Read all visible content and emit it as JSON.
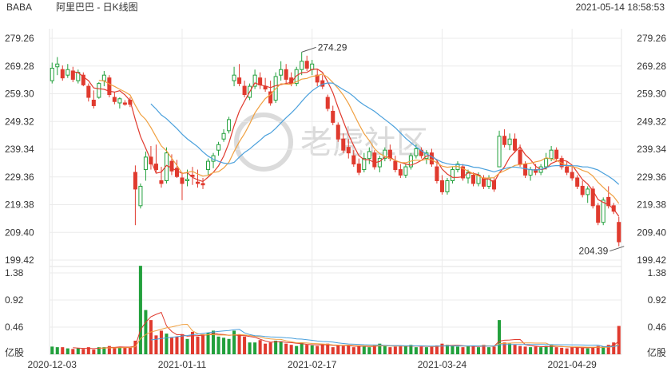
{
  "header": {
    "symbol": "BABA",
    "name": "阿里巴巴 - 日K线图",
    "timestamp": "2021-05-14 18:58:53"
  },
  "watermark": {
    "text": "老虎社区"
  },
  "colors": {
    "up": "#22a03c",
    "down": "#e03a2e",
    "ma5": "#e03a2e",
    "ma10": "#f0a040",
    "ma20": "#4aa0dc",
    "grid": "#ebebeb"
  },
  "chart_data": [
    {
      "type": "candlestick",
      "title": "",
      "price_axis": {
        "ticks": [
          "279.26",
          "269.28",
          "259.30",
          "249.32",
          "239.34",
          "229.36",
          "219.38",
          "209.40",
          "199.42"
        ],
        "range": [
          199.42,
          279.26
        ]
      },
      "date_axis": {
        "ticks": [
          "2020-12-03",
          "2021-01-11",
          "2021-02-17",
          "2021-03-24",
          "2021-04-29"
        ],
        "tick_index": [
          0,
          25,
          50,
          75,
          100
        ]
      },
      "annotations": [
        {
          "label": "274.29",
          "value": 274.29,
          "index": 48
        },
        {
          "label": "204.39",
          "value": 204.39,
          "index": 110
        }
      ],
      "ohlc": [
        [
          264.0,
          270.5,
          263.0,
          268.5
        ],
        [
          269.0,
          272.5,
          266.0,
          270.0
        ],
        [
          268.0,
          269.5,
          264.0,
          265.0
        ],
        [
          266.0,
          270.0,
          265.0,
          268.0
        ],
        [
          267.5,
          269.0,
          263.5,
          264.5
        ],
        [
          264.0,
          268.0,
          263.0,
          267.0
        ],
        [
          266.0,
          267.0,
          262.0,
          262.5
        ],
        [
          262.0,
          263.0,
          256.5,
          258.0
        ],
        [
          257.0,
          260.5,
          254.0,
          255.0
        ],
        [
          258.0,
          263.5,
          257.5,
          263.0
        ],
        [
          264.0,
          267.5,
          262.0,
          266.0
        ],
        [
          265.0,
          266.0,
          258.0,
          259.0
        ],
        [
          258.0,
          260.0,
          255.5,
          256.5
        ],
        [
          256.0,
          258.0,
          254.0,
          257.5
        ],
        [
          256.0,
          257.0,
          255.0,
          255.5
        ],
        [
          257.0,
          258.0,
          254.5,
          255.5
        ],
        [
          231.0,
          233.5,
          212.0,
          225.0
        ],
        [
          219.0,
          227.0,
          218.0,
          226.0
        ],
        [
          232.0,
          238.5,
          228.0,
          236.5
        ],
        [
          236.5,
          240.5,
          232.0,
          234.0
        ],
        [
          234.0,
          241.0,
          231.0,
          232.0
        ],
        [
          228.0,
          233.0,
          225.5,
          227.0
        ],
        [
          228.0,
          240.0,
          227.0,
          238.0
        ],
        [
          235.0,
          237.5,
          230.0,
          231.5
        ],
        [
          232.5,
          235.5,
          229.0,
          229.5
        ],
        [
          229.0,
          231.0,
          221.0,
          227.0
        ],
        [
          228.0,
          232.0,
          226.0,
          228.5
        ],
        [
          230.0,
          233.0,
          226.5,
          229.5
        ],
        [
          227.5,
          232.0,
          225.5,
          227.0
        ],
        [
          227.0,
          229.0,
          225.0,
          226.5
        ],
        [
          232.0,
          236.0,
          230.0,
          235.0
        ],
        [
          235.0,
          238.0,
          232.5,
          237.0
        ],
        [
          239.0,
          242.0,
          237.0,
          241.0
        ],
        [
          243.0,
          246.5,
          242.0,
          245.0
        ],
        [
          246.0,
          251.0,
          245.0,
          250.0
        ],
        [
          264.0,
          269.0,
          262.0,
          266.0
        ],
        [
          265.0,
          270.0,
          262.0,
          263.0
        ],
        [
          262.0,
          264.0,
          258.0,
          259.0
        ],
        [
          258.0,
          263.0,
          257.0,
          262.0
        ],
        [
          262.0,
          268.0,
          261.0,
          266.0
        ],
        [
          265.0,
          267.0,
          261.0,
          262.5
        ],
        [
          262.0,
          265.0,
          260.0,
          261.0
        ],
        [
          260.0,
          264.0,
          255.0,
          256.0
        ],
        [
          257.0,
          267.0,
          256.0,
          265.5
        ],
        [
          266.0,
          271.0,
          264.0,
          268.0
        ],
        [
          268.0,
          270.0,
          263.0,
          264.5
        ],
        [
          265.0,
          267.0,
          262.0,
          263.0
        ],
        [
          263.0,
          269.0,
          262.0,
          268.0
        ],
        [
          268.0,
          274.3,
          266.0,
          271.0
        ],
        [
          271.0,
          273.0,
          267.5,
          268.5
        ],
        [
          268.0,
          271.5,
          266.0,
          270.0
        ],
        [
          266.0,
          268.0,
          262.0,
          263.5
        ],
        [
          264.0,
          266.0,
          261.0,
          262.0
        ],
        [
          258.0,
          259.0,
          253.0,
          254.0
        ],
        [
          253.0,
          255.0,
          248.0,
          249.0
        ],
        [
          248.0,
          249.0,
          242.0,
          243.0
        ],
        [
          243.0,
          245.0,
          238.0,
          239.0
        ],
        [
          240.0,
          243.0,
          236.0,
          238.0
        ],
        [
          237.0,
          239.0,
          233.0,
          234.0
        ],
        [
          234.0,
          236.0,
          230.0,
          231.0
        ],
        [
          232.0,
          238.0,
          231.0,
          236.0
        ],
        [
          236.0,
          240.0,
          234.0,
          238.5
        ],
        [
          238.0,
          239.0,
          232.0,
          233.0
        ],
        [
          233.0,
          237.0,
          231.0,
          236.0
        ],
        [
          236.0,
          240.0,
          235.0,
          239.0
        ],
        [
          239.0,
          241.0,
          235.0,
          236.0
        ],
        [
          235.0,
          237.0,
          231.0,
          232.0
        ],
        [
          232.0,
          234.0,
          229.0,
          230.0
        ],
        [
          230.0,
          234.0,
          229.0,
          233.0
        ],
        [
          233.0,
          238.0,
          232.0,
          237.0
        ],
        [
          237.0,
          241.0,
          236.0,
          239.5
        ],
        [
          239.0,
          240.0,
          236.0,
          237.0
        ],
        [
          236.0,
          239.0,
          234.0,
          238.0
        ],
        [
          238.0,
          239.5,
          233.0,
          234.0
        ],
        [
          233.0,
          235.0,
          227.0,
          228.0
        ],
        [
          228.0,
          230.0,
          223.0,
          224.0
        ],
        [
          224.0,
          229.0,
          223.0,
          228.0
        ],
        [
          228.0,
          233.0,
          227.0,
          232.0
        ],
        [
          232.0,
          235.0,
          231.0,
          234.0
        ],
        [
          233.0,
          234.0,
          228.0,
          229.0
        ],
        [
          229.0,
          232.0,
          227.0,
          231.0
        ],
        [
          230.0,
          231.0,
          226.0,
          227.0
        ],
        [
          227.0,
          231.0,
          226.0,
          230.0
        ],
        [
          229.0,
          230.0,
          225.0,
          226.0
        ],
        [
          226.0,
          230.0,
          225.0,
          229.0
        ],
        [
          228.0,
          229.0,
          224.0,
          225.0
        ],
        [
          233.0,
          246.0,
          233.0,
          244.0
        ],
        [
          244.0,
          246.5,
          240.0,
          241.0
        ],
        [
          241.0,
          245.0,
          239.0,
          243.0
        ],
        [
          243.0,
          245.0,
          238.0,
          239.0
        ],
        [
          239.0,
          241.0,
          233.0,
          234.0
        ],
        [
          234.0,
          235.0,
          229.0,
          230.0
        ],
        [
          230.0,
          233.0,
          228.0,
          232.0
        ],
        [
          232.0,
          234.0,
          230.0,
          231.0
        ],
        [
          231.0,
          234.0,
          230.0,
          233.0
        ],
        [
          233.0,
          238.0,
          232.0,
          236.0
        ],
        [
          236.0,
          240.5,
          235.0,
          239.0
        ],
        [
          239.0,
          240.0,
          235.0,
          236.0
        ],
        [
          236.0,
          237.0,
          232.0,
          233.0
        ],
        [
          233.0,
          235.0,
          230.0,
          231.0
        ],
        [
          231.0,
          233.0,
          228.0,
          229.0
        ],
        [
          229.0,
          230.0,
          225.0,
          226.0
        ],
        [
          226.0,
          228.0,
          222.0,
          223.0
        ],
        [
          223.0,
          226.0,
          220.0,
          225.0
        ],
        [
          225.0,
          226.0,
          218.0,
          219.0
        ],
        [
          219.0,
          220.0,
          212.0,
          213.0
        ],
        [
          213.0,
          222.0,
          212.0,
          221.0
        ],
        [
          222.0,
          226.0,
          218.0,
          219.0
        ],
        [
          219.0,
          220.0,
          216.0,
          217.0
        ],
        [
          213.0,
          215.0,
          204.39,
          206.0
        ]
      ],
      "volume_axis": {
        "ticks": [
          "1.38",
          "0.92",
          "0.46",
          "亿股"
        ],
        "range": [
          0,
          1.38
        ],
        "unit": "亿股"
      },
      "volume": [
        0.13,
        0.12,
        0.12,
        0.1,
        0.09,
        0.1,
        0.09,
        0.12,
        0.08,
        0.12,
        0.12,
        0.14,
        0.12,
        0.12,
        0.11,
        0.12,
        0.23,
        1.5,
        0.75,
        0.58,
        0.32,
        0.4,
        0.35,
        0.28,
        0.3,
        0.34,
        0.26,
        0.38,
        0.3,
        0.34,
        0.36,
        0.4,
        0.3,
        0.28,
        0.26,
        0.4,
        0.34,
        0.3,
        0.2,
        0.2,
        0.24,
        0.18,
        0.2,
        0.23,
        0.22,
        0.18,
        0.16,
        0.14,
        0.2,
        0.16,
        0.15,
        0.14,
        0.16,
        0.18,
        0.12,
        0.15,
        0.14,
        0.15,
        0.12,
        0.14,
        0.13,
        0.12,
        0.16,
        0.18,
        0.14,
        0.12,
        0.13,
        0.15,
        0.14,
        0.16,
        0.12,
        0.13,
        0.12,
        0.13,
        0.15,
        0.18,
        0.16,
        0.14,
        0.13,
        0.12,
        0.14,
        0.15,
        0.12,
        0.16,
        0.12,
        0.13,
        0.58,
        0.2,
        0.18,
        0.16,
        0.14,
        0.13,
        0.12,
        0.13,
        0.12,
        0.14,
        0.16,
        0.12,
        0.11,
        0.1,
        0.12,
        0.12,
        0.11,
        0.1,
        0.12,
        0.14,
        0.13,
        0.16,
        0.2,
        0.48
      ]
    }
  ]
}
